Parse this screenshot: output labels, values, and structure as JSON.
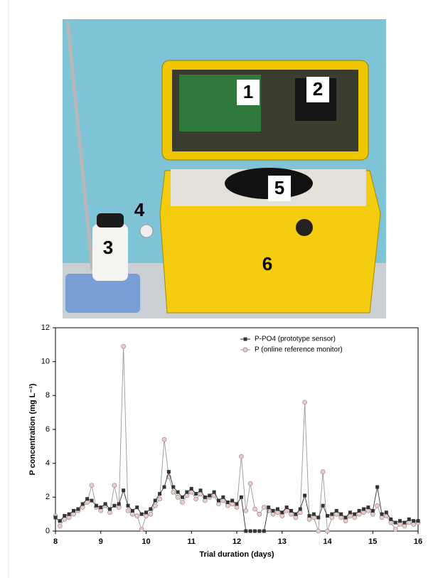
{
  "photo": {
    "labels": [
      "1",
      "2",
      "3",
      "4",
      "5",
      "6"
    ]
  },
  "chart_data": {
    "type": "line",
    "y_label": "P concentration (mg L⁻¹)",
    "x_label": "Trial duration (days)",
    "x": [
      8.0,
      8.1,
      8.2,
      8.3,
      8.4,
      8.5,
      8.6,
      8.7,
      8.8,
      8.9,
      9.0,
      9.1,
      9.2,
      9.3,
      9.4,
      9.5,
      9.6,
      9.7,
      9.8,
      9.9,
      10.0,
      10.1,
      10.2,
      10.3,
      10.4,
      10.5,
      10.6,
      10.7,
      10.8,
      10.9,
      11.0,
      11.1,
      11.2,
      11.3,
      11.4,
      11.5,
      11.6,
      11.7,
      11.8,
      11.9,
      12.0,
      12.1,
      12.2,
      12.3,
      12.4,
      12.5,
      12.6,
      12.7,
      12.8,
      12.9,
      13.0,
      13.1,
      13.2,
      13.3,
      13.4,
      13.5,
      13.6,
      13.7,
      13.8,
      13.9,
      14.0,
      14.1,
      14.2,
      14.3,
      14.4,
      14.5,
      14.6,
      14.7,
      14.8,
      14.9,
      15.0,
      15.1,
      15.2,
      15.3,
      15.4,
      15.5,
      15.6,
      15.7,
      15.8,
      15.9,
      16.0
    ],
    "series": [
      {
        "name": "P-PO4 (prototype sensor)",
        "color": "#333333",
        "marker": "square",
        "values": [
          0.8,
          0.6,
          0.9,
          1.0,
          1.2,
          1.3,
          1.6,
          1.9,
          1.8,
          1.5,
          1.4,
          1.6,
          1.3,
          1.5,
          1.6,
          2.4,
          1.5,
          1.2,
          1.4,
          1.0,
          1.1,
          1.3,
          1.8,
          2.2,
          2.6,
          3.5,
          2.6,
          2.3,
          2.0,
          2.3,
          2.5,
          2.2,
          2.4,
          2.0,
          2.1,
          2.3,
          1.8,
          2.0,
          1.7,
          1.8,
          1.6,
          2.0,
          0,
          0,
          0,
          0,
          0,
          1.4,
          1.2,
          1.3,
          1.1,
          1.4,
          1.2,
          1.0,
          1.3,
          2.1,
          0.9,
          1.0,
          0.8,
          1.5,
          0.9,
          1.0,
          1.2,
          1.0,
          0.8,
          1.1,
          1.0,
          1.2,
          1.3,
          1.4,
          1.2,
          2.6,
          1.0,
          1.1,
          0.7,
          0.5,
          0.6,
          0.5,
          0.7,
          0.6,
          0.6
        ]
      },
      {
        "name": "P (online reference monitor)",
        "color": "#999999",
        "marker": "circle",
        "marker_fill": "#f2c9c9",
        "values": [
          0.9,
          0.3,
          0.7,
          0.8,
          1.0,
          1.2,
          1.4,
          1.7,
          2.7,
          1.4,
          1.2,
          1.5,
          1.1,
          2.7,
          1.4,
          10.9,
          1.2,
          1.0,
          0.9,
          0.1,
          0.9,
          1.0,
          1.5,
          1.9,
          5.4,
          3.2,
          2.3,
          2.0,
          1.7,
          2.1,
          2.3,
          1.9,
          2.2,
          1.8,
          2.0,
          2.1,
          1.6,
          1.8,
          1.5,
          1.6,
          1.4,
          4.4,
          1.2,
          2.8,
          1.3,
          1.0,
          1.4,
          1.2,
          1.0,
          1.1,
          0.9,
          1.2,
          1.0,
          0.8,
          1.1,
          7.6,
          0.7,
          0.8,
          0.0,
          3.5,
          0.0,
          0.8,
          1.0,
          0.8,
          0.6,
          0.9,
          0.8,
          1.0,
          1.1,
          1.2,
          1.0,
          1.5,
          0.8,
          0.9,
          0.5,
          0.1,
          0.4,
          0.3,
          0.5,
          0.4,
          0.5
        ]
      }
    ],
    "xlim": [
      8,
      16
    ],
    "xticks": [
      8,
      9,
      10,
      11,
      12,
      13,
      14,
      15,
      16
    ],
    "ylim": [
      0,
      12
    ],
    "yticks": [
      0,
      2,
      4,
      6,
      8,
      10,
      12
    ],
    "legend": "top-right"
  }
}
